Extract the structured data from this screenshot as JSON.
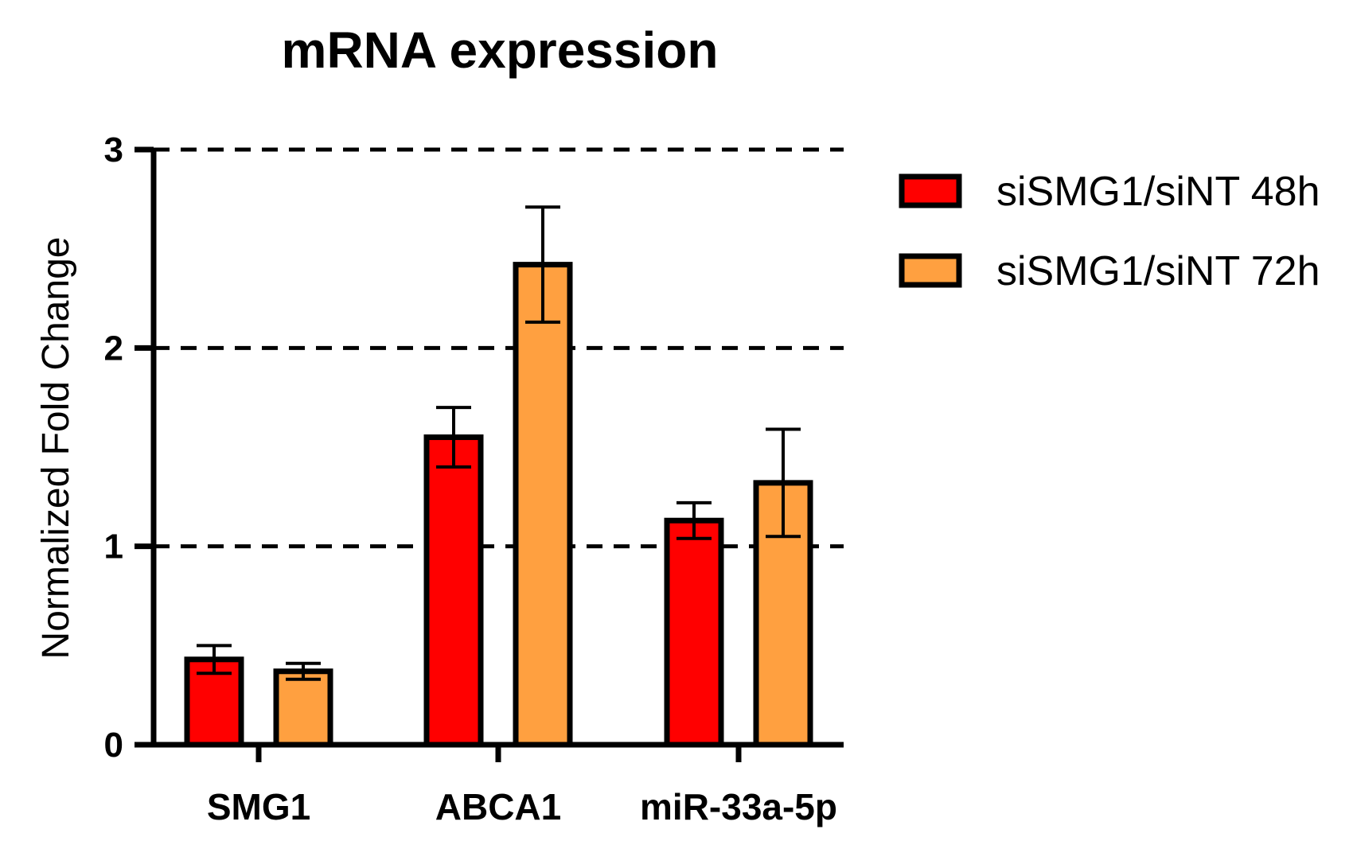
{
  "chart_data": {
    "type": "bar",
    "title": "mRNA expression",
    "xlabel": "",
    "ylabel": "Normalized Fold Change",
    "ylim": [
      0,
      3
    ],
    "yticks": [
      "0",
      "1",
      "2",
      "3"
    ],
    "grid": "dashed horizontal at 1, 2, 3",
    "legend_position": "right",
    "categories": [
      "SMG1",
      "ABCA1",
      "miR-33a-5p"
    ],
    "series": [
      {
        "name": "siSMG1/siNT 48h",
        "color": "#ff0000",
        "values": [
          0.43,
          1.55,
          1.13
        ],
        "errors": [
          0.07,
          0.15,
          0.09
        ]
      },
      {
        "name": "siSMG1/siNT 72h",
        "color": "#ffa040",
        "values": [
          0.37,
          2.42,
          1.32
        ],
        "errors": [
          0.04,
          0.29,
          0.27
        ]
      }
    ]
  }
}
